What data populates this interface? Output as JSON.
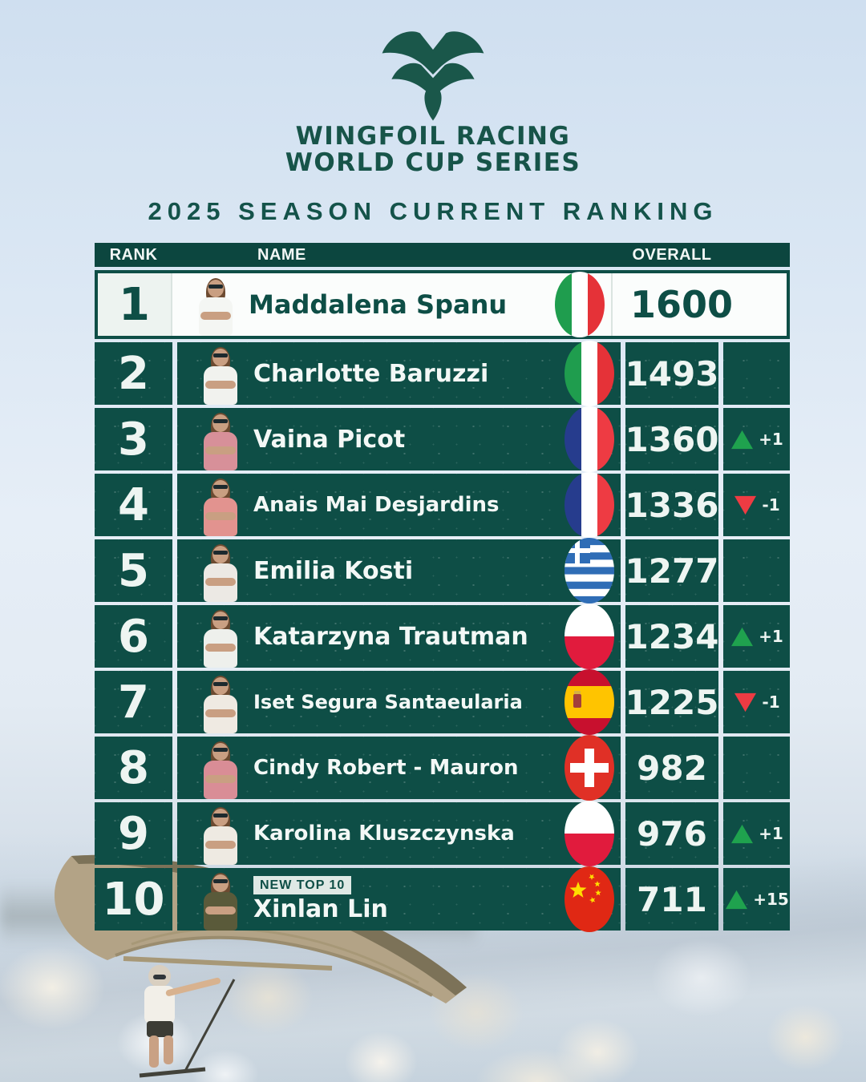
{
  "brand": {
    "logo_icon": "wingfoil-wings-icon",
    "line1": "WINGFOIL RACING",
    "line2": "WORLD CUP SERIES"
  },
  "page_title": "2025 SEASON CURRENT RANKING",
  "table": {
    "headers": {
      "rank": "RANK",
      "name": "NAME",
      "overall": "OVERALL"
    },
    "rows": [
      {
        "rank": "1",
        "name": "Maddalena Spanu",
        "flag": "italy",
        "overall": "1600",
        "change": null,
        "dir": null,
        "badge": null,
        "highlight": true,
        "shirt": "#f4f6f3"
      },
      {
        "rank": "2",
        "name": "Charlotte Baruzzi",
        "flag": "italy",
        "overall": "1493",
        "change": null,
        "dir": null,
        "badge": null,
        "highlight": false,
        "shirt": "#f1f2ee"
      },
      {
        "rank": "3",
        "name": "Vaina Picot",
        "flag": "france",
        "overall": "1360",
        "change": "+1",
        "dir": "up",
        "badge": null,
        "highlight": false,
        "shirt": "#d79099"
      },
      {
        "rank": "4",
        "name": "Anais Mai Desjardins",
        "flag": "france",
        "overall": "1336",
        "change": "-1",
        "dir": "down",
        "badge": null,
        "highlight": false,
        "shirt": "#e2938f"
      },
      {
        "rank": "5",
        "name": "Emilia Kosti",
        "flag": "greece",
        "overall": "1277",
        "change": null,
        "dir": null,
        "badge": null,
        "highlight": false,
        "shirt": "#ece9e4"
      },
      {
        "rank": "6",
        "name": "Katarzyna Trautman",
        "flag": "poland",
        "overall": "1234",
        "change": "+1",
        "dir": "up",
        "badge": null,
        "highlight": false,
        "shirt": "#eef0ec"
      },
      {
        "rank": "7",
        "name": "Iset Segura Santaeularia",
        "flag": "spain",
        "overall": "1225",
        "change": "-1",
        "dir": "down",
        "badge": null,
        "highlight": false,
        "shirt": "#efeae2"
      },
      {
        "rank": "8",
        "name": "Cindy Robert - Mauron",
        "flag": "switzerland",
        "overall": "982",
        "change": null,
        "dir": null,
        "badge": null,
        "highlight": false,
        "shirt": "#d98d96"
      },
      {
        "rank": "9",
        "name": "Karolina Kluszczynska",
        "flag": "poland",
        "overall": "976",
        "change": "+1",
        "dir": "up",
        "badge": null,
        "highlight": false,
        "shirt": "#eeeae2"
      },
      {
        "rank": "10",
        "name": "Xinlan Lin",
        "flag": "china",
        "overall": "711",
        "change": "+15",
        "dir": "up",
        "badge": "NEW TOP 10",
        "highlight": false,
        "shirt": "#5a5a3a"
      }
    ]
  },
  "colors": {
    "brand_green": "#175449",
    "cell_green": "#0e4e46",
    "up_green": "#1fa24e",
    "down_red": "#ee3b43",
    "gap_gray": "#c7d3db",
    "text_light": "#eef5f2"
  }
}
